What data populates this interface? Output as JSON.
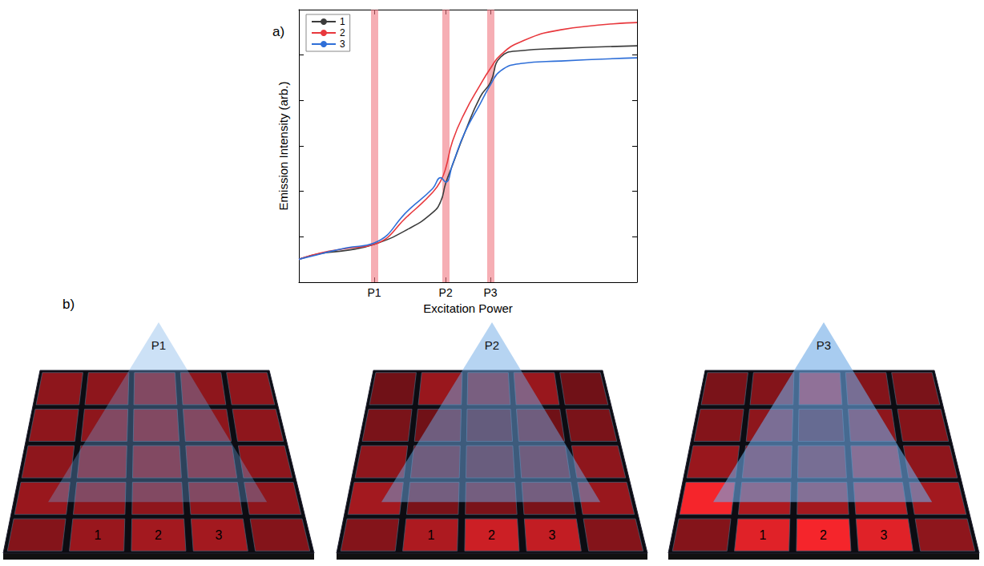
{
  "chart_label": "a)",
  "chart_data": {
    "type": "line",
    "x_label": "Excitation Power",
    "y_label": "Emission Intensity (arb.)",
    "x": [
      1,
      2.1,
      5,
      13,
      42,
      95,
      125,
      148,
      188,
      285,
      480,
      680,
      960,
      1900,
      7500,
      100000
    ],
    "series": [
      {
        "name": "1",
        "color": "#3c3c3c",
        "values": [
          3.2,
          4.3,
          5,
          6.8,
          15,
          34,
          60,
          150,
          390,
          2000,
          12000,
          25000,
          90000,
          125000,
          140000,
          160000
        ]
      },
      {
        "name": "2",
        "color": "#e8383d",
        "values": [
          3.2,
          4.4,
          5.5,
          6.8,
          30,
          95,
          170,
          320,
          1300,
          5500,
          22000,
          51000,
          100000,
          195000,
          360000,
          520000
        ]
      },
      {
        "name": "3",
        "color": "#2f6fd8",
        "values": [
          3.2,
          4.2,
          5.7,
          7.3,
          39,
          115,
          200,
          160,
          400,
          2000,
          8500,
          22000,
          45000,
          65000,
          74000,
          87000
        ]
      }
    ],
    "xlim": [
      1,
      100000
    ],
    "ylim": [
      1,
      1000000
    ],
    "xticks": [
      {
        "value": 13,
        "label": "P1"
      },
      {
        "value": 148,
        "label": "P2"
      },
      {
        "value": 680,
        "label": "P3"
      }
    ],
    "yticks": [
      1,
      10,
      100,
      1000,
      10000,
      100000,
      1000000
    ],
    "log": true,
    "grid": false,
    "legend": "top-left",
    "tick_labels": "x"
  },
  "diagram": {
    "label": "b)",
    "panels": [
      {
        "label": "P1"
      },
      {
        "label": "P2"
      },
      {
        "label": "P3"
      }
    ],
    "cell_labels": [
      "1",
      "2",
      "3"
    ]
  }
}
